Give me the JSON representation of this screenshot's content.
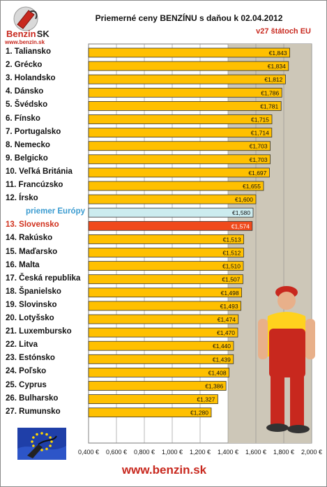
{
  "header": {
    "logo_text": "Benzin",
    "logo_text_suffix": "SK",
    "logo_url": "www.benzin.sk",
    "title": "Priemerné ceny BENZÍNU s daňou k 02.04.2012",
    "subtitle": "v27 štátoch EU"
  },
  "footer": {
    "url": "www.benzin.sk"
  },
  "colors": {
    "bar": "#ffc000",
    "bar_average": "#ccecef",
    "bar_highlight": "#f04a1c",
    "plot_bg": "#cdc7b8",
    "label_average": "#3a9bd0",
    "label_highlight": "#d0301c"
  },
  "chart_data": {
    "type": "bar",
    "orientation": "horizontal",
    "title": "Priemerné ceny BENZÍNU s daňou k 02.04.2012",
    "subtitle": "v27 štátoch EU",
    "xlim": [
      0.4,
      2.0
    ],
    "x_ticks": [
      "0,400 €",
      "0,600 €",
      "0,800 €",
      "1,000 €",
      "1,200 €",
      "1,400 €",
      "1,600 €",
      "1,800 €",
      "2,000 €"
    ],
    "x_tick_values": [
      0.4,
      0.6,
      0.8,
      1.0,
      1.2,
      1.4,
      1.6,
      1.8,
      2.0
    ],
    "grid": "vertical",
    "categories": [
      "1. Taliansko",
      "2. Grécko",
      "3. Holandsko",
      "4. Dánsko",
      "5. Švédsko",
      "6. Fínsko",
      "7. Portugalsko",
      "8. Nemecko",
      "9. Belgicko",
      "10. Veľká Británia",
      "11. Francúzsko",
      "12. Írsko",
      "priemer Európy",
      "13. Slovensko",
      "14. Rakúsko",
      "15. Maďarsko",
      "16. Malta",
      "17. Česká republika",
      "18. Španielsko",
      "19. Slovinsko",
      "20. Lotyšsko",
      "21. Luxembursko",
      "22. Litva",
      "23. Estónsko",
      "24. Poľsko",
      "25. Cyprus",
      "26. Bulharsko",
      "27. Rumunsko"
    ],
    "values": [
      1.843,
      1.834,
      1.812,
      1.786,
      1.781,
      1.715,
      1.714,
      1.703,
      1.703,
      1.697,
      1.655,
      1.6,
      1.58,
      1.574,
      1.513,
      1.512,
      1.51,
      1.507,
      1.498,
      1.493,
      1.474,
      1.47,
      1.44,
      1.439,
      1.408,
      1.386,
      1.327,
      1.28
    ],
    "data_labels": [
      "€1,843",
      "€1,834",
      "€1,812",
      "€1,786",
      "€1,781",
      "€1,715",
      "€1,714",
      "€1,703",
      "€1,703",
      "€1,697",
      "€1,655",
      "€1,600",
      "€1,580",
      "€1,574",
      "€1,513",
      "€1,512",
      "€1,510",
      "€1,507",
      "€1,498",
      "€1,493",
      "€1,474",
      "€1,470",
      "€1,440",
      "€1,439",
      "€1,408",
      "€1,386",
      "€1,327",
      "€1,280"
    ],
    "average_index": 12,
    "highlight_index": 13
  }
}
